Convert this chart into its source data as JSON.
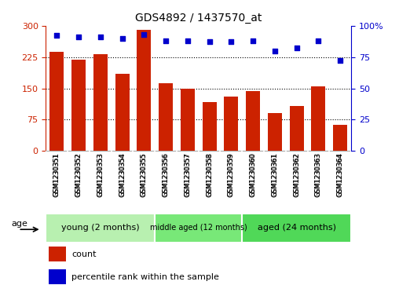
{
  "title": "GDS4892 / 1437570_at",
  "samples": [
    "GSM1230351",
    "GSM1230352",
    "GSM1230353",
    "GSM1230354",
    "GSM1230355",
    "GSM1230356",
    "GSM1230357",
    "GSM1230358",
    "GSM1230359",
    "GSM1230360",
    "GSM1230361",
    "GSM1230362",
    "GSM1230363",
    "GSM1230364"
  ],
  "counts": [
    237,
    218,
    232,
    185,
    290,
    162,
    149,
    118,
    130,
    144,
    90,
    108,
    155,
    62
  ],
  "percentile_ranks": [
    92,
    91,
    91,
    90,
    93,
    88,
    88,
    87,
    87,
    88,
    80,
    82,
    88,
    72
  ],
  "bar_color": "#cc2200",
  "dot_color": "#0000cc",
  "ylim_left": [
    0,
    300
  ],
  "ylim_right": [
    0,
    100
  ],
  "yticks_left": [
    0,
    75,
    150,
    225,
    300
  ],
  "yticks_right": [
    0,
    25,
    50,
    75,
    100
  ],
  "grid_lines": [
    75,
    150,
    225
  ],
  "age_groups": [
    {
      "label": "young (2 months)",
      "n": 5,
      "color": "#b8f0b0"
    },
    {
      "label": "middle aged (12 months)",
      "n": 4,
      "color": "#78e878"
    },
    {
      "label": "aged (24 months)",
      "n": 5,
      "color": "#50d858"
    }
  ],
  "legend_count_label": "count",
  "legend_pct_label": "percentile rank within the sample",
  "age_label": "age"
}
